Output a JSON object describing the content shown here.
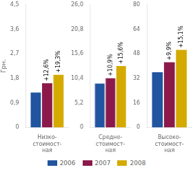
{
  "chart_data": [
    {
      "type": "bar",
      "xlabel": "Низко-\nстоимост-\nная",
      "ylabel": "Грн.",
      "categories": [
        null
      ],
      "series": [
        {
          "name": "2006",
          "color": "#2255a0",
          "values": [
            1.28
          ]
        },
        {
          "name": "2007",
          "color": "#8b1a4a",
          "values": [
            1.62
          ]
        },
        {
          "name": "2008",
          "color": "#d4aa00",
          "values": [
            1.93
          ]
        }
      ],
      "ylim": [
        0,
        4.5
      ],
      "yticks": [
        0,
        {
          "value": 0.9,
          "label": "0,9"
        },
        {
          "value": 1.8,
          "label": "1,8"
        },
        {
          "value": 2.7,
          "label": "2,7"
        },
        {
          "value": 3.6,
          "label": "3,6"
        },
        {
          "value": 4.5,
          "label": "4,5"
        }
      ],
      "annotations": [
        {
          "series": "2007",
          "text": "+12,6%"
        },
        {
          "series": "2008",
          "text": "+19,3%"
        }
      ],
      "grid": false,
      "legend": "bottom"
    },
    {
      "type": "bar",
      "xlabel": "Средне-\nстоимост-\nная",
      "categories": [
        null
      ],
      "series": [
        {
          "name": "2006",
          "color": "#2255a0",
          "values": [
            9.3
          ]
        },
        {
          "name": "2007",
          "color": "#8b1a4a",
          "values": [
            10.4
          ]
        },
        {
          "name": "2008",
          "color": "#d4aa00",
          "values": [
            13.0
          ]
        }
      ],
      "ylim": [
        0,
        26.0
      ],
      "yticks": [
        0,
        {
          "value": 5.2,
          "label": "5,2"
        },
        {
          "value": 10.4,
          "label": "10,4"
        },
        {
          "value": 15.6,
          "label": "15,6"
        },
        {
          "value": 20.8,
          "label": "20,8"
        },
        {
          "value": 26.0,
          "label": "26,0"
        }
      ],
      "annotations": [
        {
          "series": "2007",
          "text": "+10,9%"
        },
        {
          "series": "2008",
          "text": "+15,6%"
        }
      ],
      "grid": false
    },
    {
      "type": "bar",
      "xlabel": "Высоко-\nстоимост-\nная",
      "categories": [
        null
      ],
      "series": [
        {
          "name": "2006",
          "color": "#2255a0",
          "values": [
            36.0
          ]
        },
        {
          "name": "2007",
          "color": "#8b1a4a",
          "values": [
            42.5
          ]
        },
        {
          "name": "2008",
          "color": "#d4aa00",
          "values": [
            50.5
          ]
        }
      ],
      "ylim": [
        0,
        80.0
      ],
      "yticks": [
        0,
        16,
        32,
        48,
        64,
        80
      ],
      "annotations": [
        {
          "series": "2007",
          "text": "+9,9%"
        },
        {
          "series": "2008",
          "text": "+15,1%"
        }
      ],
      "grid": false
    }
  ]
}
